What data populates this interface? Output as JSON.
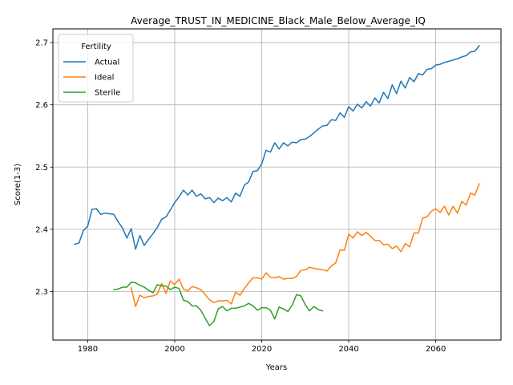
{
  "chart_data": {
    "type": "line",
    "title": "Average_TRUST_IN_MEDICINE_Black_Male_Below_Average_IQ",
    "xlabel": "Years",
    "ylabel": "Score(1-3)",
    "xlim": [
      1972,
      2075
    ],
    "ylim": [
      2.222,
      2.722
    ],
    "xticks": [
      1980,
      2000,
      2020,
      2040,
      2060
    ],
    "yticks": [
      2.3,
      2.4,
      2.5,
      2.6,
      2.7
    ],
    "ytick_labels": [
      "2.3",
      "2.4",
      "2.5",
      "2.6",
      "2.7"
    ],
    "grid": true,
    "legend": {
      "title": "Fertility",
      "position": "top-left"
    },
    "series": [
      {
        "name": "Actual",
        "color": "#1f77b4",
        "x": [
          1977,
          1978,
          1979,
          1980,
          1981,
          1982,
          1983,
          1984,
          1985,
          1986,
          1987,
          1988,
          1989,
          1990,
          1991,
          1992,
          1993,
          1994,
          1995,
          1996,
          1997,
          1998,
          1999,
          2000,
          2001,
          2002,
          2003,
          2004,
          2005,
          2006,
          2007,
          2008,
          2009,
          2010,
          2011,
          2012,
          2013,
          2014,
          2015,
          2016,
          2017,
          2018,
          2019,
          2020,
          2021,
          2022,
          2023,
          2024,
          2025,
          2026,
          2027,
          2028,
          2029,
          2030,
          2031,
          2032,
          2033,
          2034,
          2035,
          2036,
          2037,
          2038,
          2039,
          2040,
          2041,
          2042,
          2043,
          2044,
          2045,
          2046,
          2047,
          2048,
          2049,
          2050,
          2051,
          2052,
          2053,
          2054,
          2055,
          2056,
          2057,
          2058,
          2059,
          2060,
          2061,
          2062,
          2063,
          2064,
          2065,
          2066,
          2067,
          2068,
          2069,
          2070
        ],
        "y": [
          2.376,
          2.378,
          2.398,
          2.405,
          2.432,
          2.433,
          2.424,
          2.426,
          2.425,
          2.424,
          2.412,
          2.402,
          2.386,
          2.401,
          2.368,
          2.39,
          2.374,
          2.384,
          2.393,
          2.403,
          2.416,
          2.42,
          2.431,
          2.443,
          2.452,
          2.463,
          2.455,
          2.463,
          2.453,
          2.457,
          2.449,
          2.451,
          2.443,
          2.45,
          2.446,
          2.451,
          2.444,
          2.458,
          2.453,
          2.471,
          2.476,
          2.493,
          2.494,
          2.505,
          2.527,
          2.524,
          2.539,
          2.529,
          2.539,
          2.534,
          2.54,
          2.539,
          2.544,
          2.545,
          2.549,
          2.555,
          2.561,
          2.566,
          2.567,
          2.576,
          2.575,
          2.587,
          2.58,
          2.597,
          2.59,
          2.601,
          2.595,
          2.605,
          2.598,
          2.611,
          2.603,
          2.62,
          2.61,
          2.632,
          2.618,
          2.638,
          2.627,
          2.644,
          2.637,
          2.65,
          2.648,
          2.657,
          2.658,
          2.664,
          2.665,
          2.668,
          2.67,
          2.672,
          2.674,
          2.677,
          2.679,
          2.685,
          2.686,
          2.695
        ]
      },
      {
        "name": "Ideal",
        "color": "#ff7f0e",
        "x": [
          1990,
          1991,
          1992,
          1993,
          1994,
          1995,
          1996,
          1997,
          1998,
          1999,
          2000,
          2001,
          2002,
          2003,
          2004,
          2005,
          2006,
          2007,
          2008,
          2009,
          2010,
          2011,
          2012,
          2013,
          2014,
          2015,
          2016,
          2017,
          2018,
          2019,
          2020,
          2021,
          2022,
          2023,
          2024,
          2025,
          2026,
          2027,
          2028,
          2029,
          2030,
          2031,
          2032,
          2033,
          2034,
          2035,
          2036,
          2037,
          2038,
          2039,
          2040,
          2041,
          2042,
          2043,
          2044,
          2045,
          2046,
          2047,
          2048,
          2049,
          2050,
          2051,
          2052,
          2053,
          2054,
          2055,
          2056,
          2057,
          2058,
          2059,
          2060,
          2061,
          2062,
          2063,
          2064,
          2065,
          2066,
          2067,
          2068,
          2069,
          2070
        ],
        "y": [
          2.306,
          2.276,
          2.294,
          2.29,
          2.292,
          2.293,
          2.296,
          2.313,
          2.297,
          2.317,
          2.311,
          2.32,
          2.304,
          2.301,
          2.308,
          2.306,
          2.303,
          2.295,
          2.287,
          2.282,
          2.285,
          2.285,
          2.286,
          2.28,
          2.299,
          2.294,
          2.305,
          2.314,
          2.322,
          2.322,
          2.32,
          2.33,
          2.323,
          2.322,
          2.324,
          2.32,
          2.321,
          2.321,
          2.324,
          2.334,
          2.335,
          2.339,
          2.337,
          2.336,
          2.335,
          2.333,
          2.341,
          2.346,
          2.367,
          2.366,
          2.392,
          2.386,
          2.396,
          2.39,
          2.395,
          2.389,
          2.382,
          2.382,
          2.375,
          2.376,
          2.369,
          2.373,
          2.364,
          2.377,
          2.372,
          2.394,
          2.394,
          2.418,
          2.42,
          2.429,
          2.433,
          2.427,
          2.437,
          2.423,
          2.437,
          2.426,
          2.445,
          2.439,
          2.458,
          2.455,
          2.473
        ]
      },
      {
        "name": "Sterile",
        "color": "#2ca02c",
        "x": [
          1986,
          1987,
          1988,
          1989,
          1990,
          1991,
          1992,
          1993,
          1994,
          1995,
          1996,
          1997,
          1998,
          1999,
          2000,
          2001,
          2002,
          2003,
          2004,
          2005,
          2006,
          2007,
          2008,
          2009,
          2010,
          2011,
          2012,
          2013,
          2014,
          2015,
          2016,
          2017,
          2018,
          2019,
          2020,
          2021,
          2022,
          2023,
          2024,
          2025,
          2026,
          2027,
          2028,
          2029,
          2030,
          2031,
          2032,
          2033,
          2034
        ],
        "y": [
          2.303,
          2.304,
          2.307,
          2.307,
          2.315,
          2.314,
          2.31,
          2.307,
          2.302,
          2.298,
          2.311,
          2.309,
          2.309,
          2.303,
          2.307,
          2.305,
          2.286,
          2.284,
          2.277,
          2.277,
          2.27,
          2.257,
          2.245,
          2.252,
          2.272,
          2.276,
          2.269,
          2.273,
          2.273,
          2.275,
          2.277,
          2.281,
          2.277,
          2.27,
          2.274,
          2.274,
          2.27,
          2.256,
          2.275,
          2.272,
          2.268,
          2.278,
          2.295,
          2.293,
          2.279,
          2.269,
          2.276,
          2.271,
          2.269
        ]
      }
    ]
  }
}
